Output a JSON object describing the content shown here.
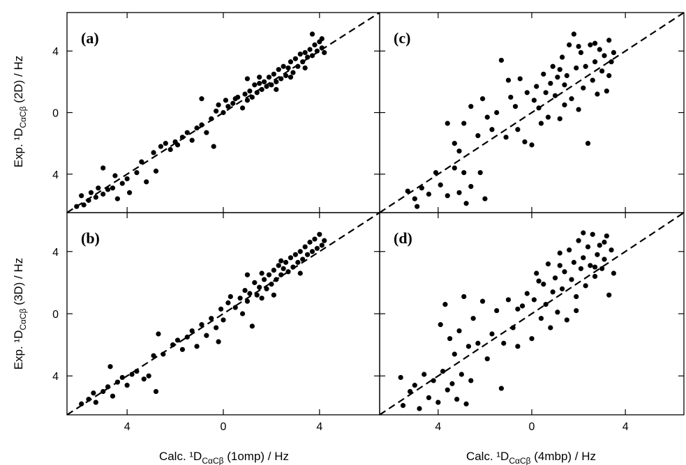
{
  "figure": {
    "x_axis_left": "Calc. ¹D",
    "x_axis_left_sub": "CαCβ",
    "x_axis_left_tail": " (1omp) / Hz",
    "x_axis_right": "Calc. ¹D",
    "x_axis_right_sub": "CαCβ",
    "x_axis_right_tail": " (4mbp) / Hz",
    "y_axis_top": "Exp. ¹D",
    "y_axis_top_sub": "CαCβ",
    "y_axis_top_tail": " (2D) / Hz",
    "y_axis_bottom": "Exp. ¹D",
    "y_axis_bottom_sub": "CαCβ",
    "y_axis_bottom_tail": " (3D) / Hz"
  },
  "chart_data": [
    {
      "panel": "(a)",
      "type": "scatter",
      "xlim": [
        -6.5,
        6.5
      ],
      "ylim": [
        -6.5,
        6.5
      ],
      "xticks": [
        -4,
        0,
        4
      ],
      "xtick_labels": [
        "4",
        "0",
        "4"
      ],
      "yticks": [
        -4,
        0,
        4
      ],
      "ytick_labels": [
        "4",
        "0",
        "4"
      ],
      "reference_line": "y = x (dashed)",
      "points": [
        [
          -6.1,
          -6.1
        ],
        [
          -5.8,
          -6.0
        ],
        [
          -5.6,
          -5.7
        ],
        [
          -5.9,
          -5.4
        ],
        [
          -5.5,
          -5.2
        ],
        [
          -5.3,
          -5.5
        ],
        [
          -5.0,
          -5.3
        ],
        [
          -4.8,
          -5.0
        ],
        [
          -5.2,
          -4.9
        ],
        [
          -4.6,
          -4.9
        ],
        [
          -5.0,
          -3.6
        ],
        [
          -4.4,
          -5.6
        ],
        [
          -4.2,
          -4.6
        ],
        [
          -4.0,
          -4.3
        ],
        [
          -3.9,
          -5.2
        ],
        [
          -3.6,
          -3.9
        ],
        [
          -4.5,
          -4.1
        ],
        [
          -3.2,
          -4.5
        ],
        [
          -2.8,
          -3.8
        ],
        [
          -3.4,
          -3.2
        ],
        [
          -2.9,
          -2.6
        ],
        [
          -2.6,
          -2.2
        ],
        [
          -2.4,
          -2.0
        ],
        [
          -2.2,
          -2.4
        ],
        [
          -2.0,
          -1.9
        ],
        [
          -1.9,
          -2.1
        ],
        [
          -1.7,
          -1.6
        ],
        [
          -1.5,
          -1.3
        ],
        [
          -1.3,
          -1.8
        ],
        [
          -1.1,
          -1.0
        ],
        [
          -0.9,
          -0.8
        ],
        [
          -0.7,
          -1.3
        ],
        [
          -0.9,
          0.9
        ],
        [
          -0.5,
          -0.4
        ],
        [
          -0.4,
          -2.2
        ],
        [
          -0.3,
          0.1
        ],
        [
          -0.2,
          0.5
        ],
        [
          0.0,
          0.0
        ],
        [
          0.1,
          0.8
        ],
        [
          0.2,
          0.4
        ],
        [
          0.4,
          0.6
        ],
        [
          0.6,
          1.0
        ],
        [
          0.8,
          0.3
        ],
        [
          0.9,
          1.2
        ],
        [
          1.0,
          2.2
        ],
        [
          1.1,
          1.4
        ],
        [
          1.2,
          1.0
        ],
        [
          1.3,
          1.8
        ],
        [
          1.4,
          1.3
        ],
        [
          1.5,
          1.9
        ],
        [
          1.6,
          1.5
        ],
        [
          1.7,
          2.0
        ],
        [
          1.8,
          1.7
        ],
        [
          1.9,
          2.3
        ],
        [
          2.0,
          1.8
        ],
        [
          2.1,
          2.5
        ],
        [
          2.2,
          2.0
        ],
        [
          2.3,
          2.8
        ],
        [
          2.4,
          2.2
        ],
        [
          2.5,
          3.0
        ],
        [
          2.6,
          2.4
        ],
        [
          2.7,
          2.9
        ],
        [
          2.8,
          3.3
        ],
        [
          2.9,
          2.6
        ],
        [
          3.0,
          3.5
        ],
        [
          3.1,
          3.0
        ],
        [
          3.2,
          3.8
        ],
        [
          3.3,
          3.3
        ],
        [
          3.4,
          3.9
        ],
        [
          3.5,
          3.6
        ],
        [
          3.6,
          4.1
        ],
        [
          3.7,
          3.7
        ],
        [
          3.8,
          4.4
        ],
        [
          3.9,
          4.0
        ],
        [
          4.0,
          4.6
        ],
        [
          4.1,
          4.2
        ],
        [
          4.2,
          3.9
        ],
        [
          3.7,
          5.1
        ],
        [
          4.1,
          4.8
        ],
        [
          1.5,
          2.3
        ],
        [
          2.2,
          1.5
        ],
        [
          0.5,
          0.9
        ],
        [
          1.0,
          0.8
        ],
        [
          2.8,
          2.3
        ],
        [
          3.4,
          2.9
        ]
      ]
    },
    {
      "panel": "(b)",
      "type": "scatter",
      "xlim": [
        -6.5,
        6.5
      ],
      "ylim": [
        -6.5,
        6.5
      ],
      "xticks": [
        -4,
        0,
        4
      ],
      "xtick_labels": [
        "4",
        "0",
        "4"
      ],
      "yticks": [
        -4,
        0,
        4
      ],
      "ytick_labels": [
        "4",
        "0",
        "4"
      ],
      "reference_line": "y = x (dashed)",
      "points": [
        [
          -5.9,
          -5.8
        ],
        [
          -5.6,
          -5.5
        ],
        [
          -5.3,
          -5.7
        ],
        [
          -5.4,
          -5.1
        ],
        [
          -5.0,
          -5.0
        ],
        [
          -4.8,
          -4.7
        ],
        [
          -4.6,
          -5.3
        ],
        [
          -4.4,
          -4.4
        ],
        [
          -4.2,
          -4.1
        ],
        [
          -4.0,
          -4.6
        ],
        [
          -3.8,
          -3.9
        ],
        [
          -4.7,
          -3.4
        ],
        [
          -3.6,
          -3.7
        ],
        [
          -3.3,
          -4.2
        ],
        [
          -3.1,
          -4.0
        ],
        [
          -2.9,
          -2.7
        ],
        [
          -2.8,
          -5.0
        ],
        [
          -2.7,
          -1.3
        ],
        [
          -2.5,
          -2.6
        ],
        [
          -2.1,
          -2.0
        ],
        [
          -1.9,
          -1.7
        ],
        [
          -1.7,
          -2.3
        ],
        [
          -1.5,
          -1.5
        ],
        [
          -1.3,
          -1.1
        ],
        [
          -1.1,
          -2.1
        ],
        [
          -0.9,
          -0.7
        ],
        [
          -0.7,
          -1.4
        ],
        [
          -0.5,
          -0.3
        ],
        [
          -0.3,
          -0.9
        ],
        [
          -0.1,
          0.3
        ],
        [
          0.0,
          -0.4
        ],
        [
          0.2,
          0.7
        ],
        [
          0.3,
          1.1
        ],
        [
          0.5,
          0.4
        ],
        [
          0.7,
          1.0
        ],
        [
          0.9,
          1.5
        ],
        [
          1.0,
          0.8
        ],
        [
          1.1,
          1.3
        ],
        [
          1.2,
          -0.8
        ],
        [
          1.3,
          2.0
        ],
        [
          1.4,
          1.2
        ],
        [
          1.5,
          1.7
        ],
        [
          1.6,
          1.0
        ],
        [
          1.7,
          2.2
        ],
        [
          1.8,
          1.6
        ],
        [
          1.9,
          2.5
        ],
        [
          2.0,
          1.9
        ],
        [
          2.1,
          2.8
        ],
        [
          2.2,
          2.2
        ],
        [
          2.3,
          3.1
        ],
        [
          2.4,
          2.5
        ],
        [
          2.5,
          2.9
        ],
        [
          2.6,
          3.3
        ],
        [
          2.7,
          2.7
        ],
        [
          2.8,
          3.6
        ],
        [
          2.9,
          3.0
        ],
        [
          3.0,
          3.8
        ],
        [
          3.1,
          3.3
        ],
        [
          3.2,
          4.0
        ],
        [
          3.3,
          3.5
        ],
        [
          3.4,
          4.3
        ],
        [
          3.5,
          3.8
        ],
        [
          3.6,
          4.6
        ],
        [
          3.7,
          4.0
        ],
        [
          3.8,
          4.8
        ],
        [
          3.9,
          4.2
        ],
        [
          4.0,
          5.1
        ],
        [
          4.1,
          4.4
        ],
        [
          4.2,
          4.7
        ],
        [
          2.1,
          1.2
        ],
        [
          3.2,
          2.6
        ],
        [
          0.8,
          0.0
        ],
        [
          1.6,
          2.6
        ],
        [
          2.4,
          3.4
        ],
        [
          1.0,
          2.5
        ],
        [
          -0.2,
          -1.8
        ]
      ]
    },
    {
      "panel": "(c)",
      "type": "scatter",
      "xlim": [
        -6.5,
        6.5
      ],
      "ylim": [
        -6.5,
        6.5
      ],
      "xticks": [
        -4,
        0,
        4
      ],
      "xtick_labels": [
        "4",
        "0",
        "4"
      ],
      "yticks": [
        -4,
        0,
        4
      ],
      "ytick_labels": [
        "4",
        "0",
        "4"
      ],
      "reference_line": "y = x (dashed)",
      "points": [
        [
          -5.3,
          -5.1
        ],
        [
          -5.0,
          -5.6
        ],
        [
          -4.7,
          -4.9
        ],
        [
          -4.9,
          -6.1
        ],
        [
          -4.4,
          -5.3
        ],
        [
          -4.1,
          -3.9
        ],
        [
          -3.9,
          -4.7
        ],
        [
          -3.6,
          -5.4
        ],
        [
          -3.3,
          -3.6
        ],
        [
          -3.1,
          -5.2
        ],
        [
          -2.9,
          -3.9
        ],
        [
          -2.8,
          -5.9
        ],
        [
          -2.6,
          -4.8
        ],
        [
          -2.2,
          -3.9
        ],
        [
          -2.0,
          -5.6
        ],
        [
          -3.6,
          -0.7
        ],
        [
          -3.3,
          -2.0
        ],
        [
          -3.1,
          -2.5
        ],
        [
          -2.9,
          -0.7
        ],
        [
          -2.6,
          0.4
        ],
        [
          -2.3,
          -1.5
        ],
        [
          -2.1,
          0.9
        ],
        [
          -1.9,
          -0.3
        ],
        [
          -1.7,
          -1.1
        ],
        [
          -1.5,
          0.0
        ],
        [
          -1.3,
          3.4
        ],
        [
          -1.1,
          -1.6
        ],
        [
          -0.9,
          1.0
        ],
        [
          -0.7,
          0.4
        ],
        [
          -0.5,
          2.2
        ],
        [
          -0.3,
          -1.9
        ],
        [
          -0.2,
          1.3
        ],
        [
          0.0,
          -2.1
        ],
        [
          0.1,
          0.8
        ],
        [
          0.2,
          1.7
        ],
        [
          0.4,
          -0.7
        ],
        [
          0.5,
          2.5
        ],
        [
          0.6,
          1.3
        ],
        [
          0.7,
          -0.3
        ],
        [
          0.8,
          1.9
        ],
        [
          0.9,
          3.0
        ],
        [
          1.0,
          1.1
        ],
        [
          1.1,
          2.3
        ],
        [
          1.2,
          -0.4
        ],
        [
          1.3,
          3.6
        ],
        [
          1.4,
          1.8
        ],
        [
          1.5,
          2.4
        ],
        [
          1.6,
          4.4
        ],
        [
          1.7,
          0.9
        ],
        [
          1.8,
          5.1
        ],
        [
          1.9,
          2.9
        ],
        [
          2.0,
          0.2
        ],
        [
          2.1,
          3.9
        ],
        [
          2.2,
          1.6
        ],
        [
          2.3,
          3.0
        ],
        [
          2.4,
          -2.0
        ],
        [
          2.5,
          4.4
        ],
        [
          2.6,
          2.1
        ],
        [
          2.7,
          3.3
        ],
        [
          2.8,
          1.2
        ],
        [
          2.9,
          4.1
        ],
        [
          3.0,
          2.7
        ],
        [
          3.1,
          3.7
        ],
        [
          3.2,
          1.4
        ],
        [
          3.3,
          4.7
        ],
        [
          3.4,
          3.3
        ],
        [
          3.5,
          3.9
        ],
        [
          3.3,
          2.4
        ],
        [
          1.2,
          2.8
        ],
        [
          0.3,
          0.3
        ],
        [
          -0.6,
          -1.1
        ],
        [
          2.0,
          4.3
        ],
        [
          2.7,
          4.5
        ],
        [
          1.4,
          0.5
        ],
        [
          -1.0,
          2.1
        ]
      ]
    },
    {
      "panel": "(d)",
      "type": "scatter",
      "xlim": [
        -6.5,
        6.5
      ],
      "ylim": [
        -6.5,
        6.5
      ],
      "xticks": [
        -4,
        0,
        4
      ],
      "xtick_labels": [
        "4",
        "0",
        "4"
      ],
      "yticks": [
        -4,
        0,
        4
      ],
      "ytick_labels": [
        "4",
        "0",
        "4"
      ],
      "reference_line": "y = x (dashed)",
      "points": [
        [
          -5.6,
          -4.1
        ],
        [
          -5.5,
          -5.9
        ],
        [
          -5.2,
          -5.0
        ],
        [
          -5.0,
          -4.6
        ],
        [
          -4.8,
          -6.1
        ],
        [
          -4.6,
          -3.9
        ],
        [
          -4.4,
          -5.4
        ],
        [
          -4.2,
          -4.3
        ],
        [
          -4.0,
          -5.7
        ],
        [
          -3.8,
          -3.7
        ],
        [
          -3.6,
          -4.9
        ],
        [
          -3.4,
          -4.5
        ],
        [
          -3.2,
          -5.5
        ],
        [
          -3.0,
          -3.9
        ],
        [
          -2.8,
          -5.8
        ],
        [
          -2.6,
          -4.3
        ],
        [
          -3.9,
          -0.7
        ],
        [
          -3.7,
          0.6
        ],
        [
          -3.5,
          -1.6
        ],
        [
          -3.3,
          -2.6
        ],
        [
          -3.1,
          -1.1
        ],
        [
          -2.9,
          1.1
        ],
        [
          -2.7,
          -2.1
        ],
        [
          -2.5,
          -0.3
        ],
        [
          -2.3,
          -1.9
        ],
        [
          -2.1,
          0.8
        ],
        [
          -1.9,
          -2.9
        ],
        [
          -1.7,
          -1.3
        ],
        [
          -1.5,
          0.2
        ],
        [
          -1.3,
          -4.8
        ],
        [
          -1.2,
          -1.9
        ],
        [
          -1.0,
          0.9
        ],
        [
          -0.8,
          -0.9
        ],
        [
          -0.6,
          -2.1
        ],
        [
          -0.4,
          0.5
        ],
        [
          -0.2,
          1.3
        ],
        [
          0.0,
          -1.6
        ],
        [
          0.1,
          0.9
        ],
        [
          0.2,
          2.6
        ],
        [
          0.4,
          -0.3
        ],
        [
          0.5,
          1.9
        ],
        [
          0.6,
          0.6
        ],
        [
          0.7,
          3.2
        ],
        [
          0.8,
          -0.9
        ],
        [
          0.9,
          1.4
        ],
        [
          1.0,
          2.3
        ],
        [
          1.1,
          0.1
        ],
        [
          1.2,
          3.9
        ],
        [
          1.3,
          1.6
        ],
        [
          1.4,
          2.7
        ],
        [
          1.5,
          -0.4
        ],
        [
          1.6,
          4.1
        ],
        [
          1.7,
          2.2
        ],
        [
          1.8,
          3.3
        ],
        [
          1.9,
          1.1
        ],
        [
          2.0,
          4.7
        ],
        [
          2.1,
          2.9
        ],
        [
          2.2,
          3.6
        ],
        [
          2.3,
          1.8
        ],
        [
          2.4,
          4.3
        ],
        [
          2.5,
          3.1
        ],
        [
          2.6,
          5.1
        ],
        [
          2.7,
          2.4
        ],
        [
          2.8,
          3.8
        ],
        [
          2.9,
          4.4
        ],
        [
          3.0,
          2.9
        ],
        [
          3.1,
          3.5
        ],
        [
          3.2,
          5.0
        ],
        [
          3.3,
          1.2
        ],
        [
          3.4,
          4.1
        ],
        [
          3.5,
          2.6
        ],
        [
          2.2,
          5.2
        ],
        [
          1.2,
          3.1
        ],
        [
          0.3,
          2.1
        ],
        [
          -0.6,
          0.3
        ],
        [
          1.9,
          0.2
        ],
        [
          2.7,
          3.0
        ],
        [
          3.1,
          4.6
        ]
      ]
    }
  ]
}
